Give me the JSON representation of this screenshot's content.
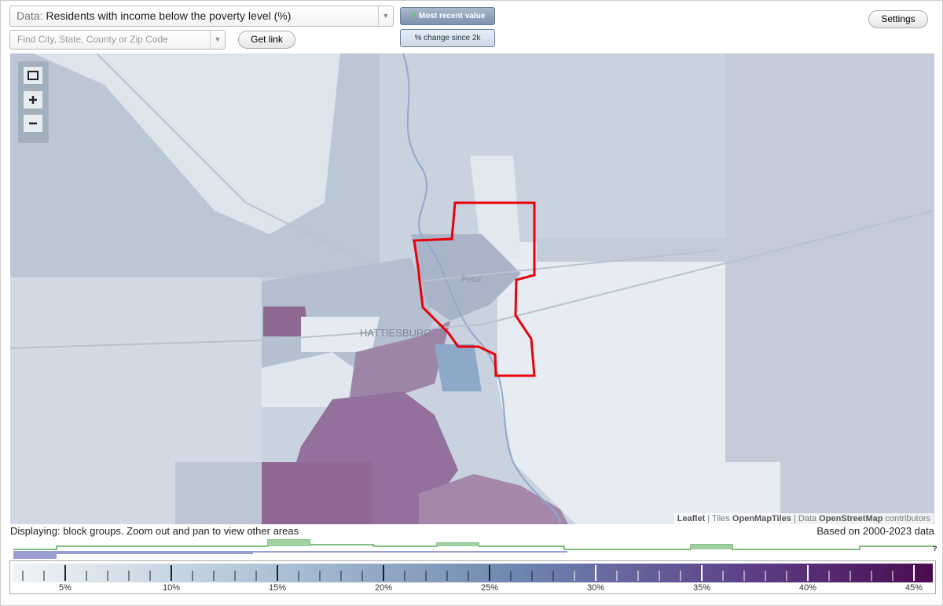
{
  "header": {
    "data_label": "Data:",
    "data_value": "Residents with income below the poverty level (%)",
    "search_placeholder": "Find City, State, County or Zip Code",
    "get_link": "Get link",
    "toggle_recent": "Most recent value",
    "toggle_change": "% change since 2k",
    "settings": "Settings"
  },
  "map": {
    "labels": {
      "petal": "Petal",
      "hattiesburg": "HATTIESBURG"
    },
    "attribution": {
      "leaflet": "Leaflet",
      "sep1": " | Tiles ",
      "tiles": "OpenMapTiles",
      "sep2": " | Data ",
      "data": "OpenStreetMap",
      "suffix": " contributors"
    }
  },
  "footer": {
    "displaying": "Displaying: block groups. Zoom out and pan to view other areas",
    "based_on": "Based on 2000-2023 data",
    "help": "?"
  },
  "legend": {
    "labels": [
      "5%",
      "10%",
      "15%",
      "20%",
      "25%",
      "30%",
      "35%",
      "40%",
      "45%"
    ]
  }
}
